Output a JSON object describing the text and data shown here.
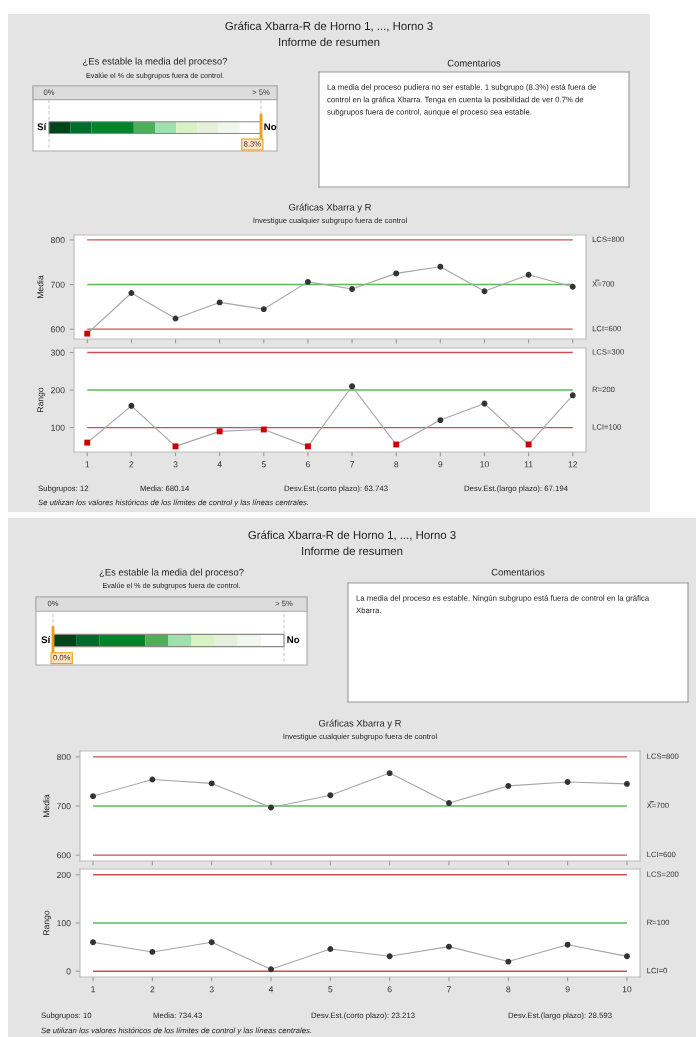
{
  "chart_data": [
    {
      "type": "other",
      "title": "Gráfica Xbarra-R de Horno 1, ..., Horno 3",
      "subtitle": "Informe de resumen"
    },
    {
      "type": "other",
      "title": "¿Es estable la media del proceso?",
      "subtitle": "Evalúe el % de subgrupos fuera de control.",
      "categories": [
        "0%",
        "> 5%"
      ],
      "annotations": [
        "Sí",
        "No",
        {
          "text": "8.3%",
          "x": "> 5%"
        }
      ]
    },
    {
      "type": "other",
      "title": "Comentarios",
      "annotations": [
        "La media del proceso pudiera no ser estable. 1 subgrupo (8.3%) está fuera de control en la gráfica Xbarra. Tenga en cuenta la posibilidad de ver 0.7% de subgrupos fuera de control, aunque el proceso sea estable."
      ]
    },
    {
      "type": "line",
      "title": "Gráficas Xbarra y R",
      "subtitle": "Investigue cualquier subgrupo fuera de control",
      "ylabel": "Media",
      "categories": [
        "1",
        "2",
        "3",
        "4",
        "5",
        "6",
        "7",
        "8",
        "9",
        "10",
        "11",
        "12"
      ],
      "ylim": [
        578,
        811
      ],
      "yticks": [
        600,
        700,
        800
      ],
      "tick_labels": "y",
      "series": [
        {
          "type": "line",
          "color": "#a6a6a6",
          "marker": "none",
          "values": [
            590,
            681,
            624,
            660,
            645,
            706,
            690,
            725,
            740,
            685,
            722,
            695
          ]
        },
        {
          "type": "scatter",
          "color": "#333333",
          "marker": "circle",
          "values": [
            null,
            681,
            624,
            660,
            645,
            706,
            690,
            725,
            740,
            685,
            722,
            695
          ]
        },
        {
          "type": "scatter",
          "color": "#cc0000",
          "marker": "square",
          "values": [
            590,
            null,
            null,
            null,
            null,
            null,
            null,
            null,
            null,
            null,
            null,
            null
          ]
        }
      ],
      "ref_lines": [
        {
          "axis": "y",
          "value": 800,
          "label": "LCS=800",
          "color": "#c85050"
        },
        {
          "axis": "y",
          "value": 700,
          "label": "X̿=700",
          "color": "#5cb85c"
        },
        {
          "axis": "y",
          "value": 600,
          "label": "LCI=600",
          "color": "#c85050"
        }
      ]
    },
    {
      "type": "line",
      "ylabel": "Rango",
      "categories": [
        "1",
        "2",
        "3",
        "4",
        "5",
        "6",
        "7",
        "8",
        "9",
        "10",
        "11",
        "12"
      ],
      "ylim": [
        35,
        312
      ],
      "yticks": [
        100,
        200,
        300
      ],
      "series": [
        {
          "type": "line",
          "color": "#a6a6a6",
          "marker": "none",
          "values": [
            60,
            158,
            50,
            90,
            95,
            50,
            210,
            55,
            120,
            164,
            55,
            186
          ]
        },
        {
          "type": "scatter",
          "color": "#333333",
          "marker": "circle",
          "values": [
            null,
            158,
            null,
            null,
            null,
            null,
            210,
            null,
            120,
            164,
            null,
            186
          ]
        },
        {
          "type": "scatter",
          "color": "#cc0000",
          "marker": "square",
          "values": [
            60,
            null,
            50,
            90,
            95,
            50,
            null,
            55,
            null,
            null,
            55,
            null
          ]
        }
      ],
      "ref_lines": [
        {
          "axis": "y",
          "value": 300,
          "label": "LCS=300",
          "color": "#c85050"
        },
        {
          "axis": "y",
          "value": 200,
          "label": "R̄=200",
          "color": "#5cb85c"
        },
        {
          "axis": "y",
          "value": 100,
          "label": "LCI=100",
          "color": "#c85050"
        }
      ],
      "annotations": [
        "Subgrupos: 12",
        "Media: 680.14",
        "Desv.Est.(corto plazo): 63.743",
        "Desv.Est.(largo plazo): 67.194",
        "Se utilizan los valores históricos de los límites de control y las líneas centrales."
      ]
    },
    {
      "type": "other",
      "title": "Gráfica Xbarra-R de Horno 1, ..., Horno 3",
      "subtitle": "Informe de resumen"
    },
    {
      "type": "other",
      "title": "¿Es estable la media del proceso?",
      "subtitle": "Evalúe el % de subgrupos fuera de control.",
      "categories": [
        "0%",
        "> 5%"
      ],
      "annotations": [
        "Sí",
        "No",
        {
          "text": "0.0%",
          "x": "0%"
        }
      ]
    },
    {
      "type": "other",
      "title": "Comentarios",
      "annotations": [
        "La media del proceso es estable. Ningún subgrupo está fuera de control en la gráfica Xbarra."
      ]
    },
    {
      "type": "line",
      "title": "Gráficas Xbarra y R",
      "subtitle": "Investigue cualquier subgrupo fuera de control",
      "ylabel": "Media",
      "categories": [
        "1",
        "2",
        "3",
        "4",
        "5",
        "6",
        "7",
        "8",
        "9",
        "10"
      ],
      "ylim": [
        588,
        812
      ],
      "yticks": [
        600,
        700,
        800
      ],
      "tick_labels": "y",
      "series": [
        {
          "type": "line",
          "color": "#a6a6a6",
          "marker": "none",
          "values": [
            720,
            754,
            746,
            697,
            722,
            767,
            706,
            741,
            749,
            745
          ]
        },
        {
          "type": "scatter",
          "color": "#333333",
          "marker": "circle",
          "values": [
            720,
            754,
            746,
            697,
            722,
            767,
            706,
            741,
            749,
            745
          ]
        }
      ],
      "ref_lines": [
        {
          "axis": "y",
          "value": 800,
          "label": "LCS=800",
          "color": "#c85050"
        },
        {
          "axis": "y",
          "value": 700,
          "label": "X̿=700",
          "color": "#5cb85c"
        },
        {
          "axis": "y",
          "value": 600,
          "label": "LCI=600",
          "color": "#c85050"
        }
      ]
    },
    {
      "type": "line",
      "ylabel": "Rango",
      "categories": [
        "1",
        "2",
        "3",
        "4",
        "5",
        "6",
        "7",
        "8",
        "9",
        "10"
      ],
      "ylim": [
        -12,
        212
      ],
      "yticks": [
        0,
        100,
        200
      ],
      "series": [
        {
          "type": "line",
          "color": "#a6a6a6",
          "marker": "none",
          "values": [
            60,
            40,
            60,
            4,
            46,
            31,
            51,
            20,
            55,
            31
          ]
        },
        {
          "type": "scatter",
          "color": "#333333",
          "marker": "circle",
          "values": [
            60,
            40,
            60,
            4,
            46,
            31,
            51,
            20,
            55,
            31
          ]
        }
      ],
      "ref_lines": [
        {
          "axis": "y",
          "value": 200,
          "label": "LCS=200",
          "color": "#c85050"
        },
        {
          "axis": "y",
          "value": 100,
          "label": "R̄=100",
          "color": "#5cb85c"
        },
        {
          "axis": "y",
          "value": 0,
          "label": "LCI=0",
          "color": "#c85050"
        }
      ],
      "annotations": [
        "Subgrupos: 10",
        "Media: 734.43",
        "Desv.Est.(corto plazo): 23.213",
        "Desv.Est.(largo plazo): 28.593",
        "Se utilizan los valores históricos de los límites de control y las líneas centrales."
      ]
    }
  ]
}
